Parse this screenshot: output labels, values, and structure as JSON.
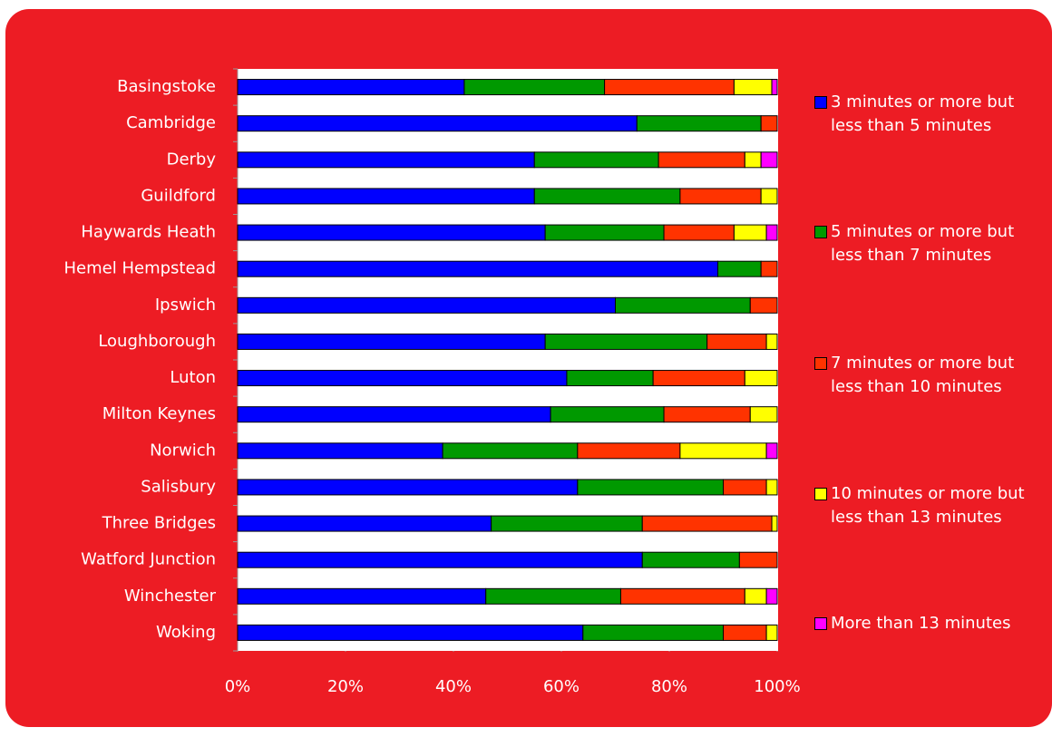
{
  "chart_data": {
    "type": "stacked-bar",
    "categories": [
      "Basingstoke",
      "Cambridge",
      "Derby",
      "Guildford",
      "Haywards Heath",
      "Hemel Hempstead",
      "Ipswich",
      "Loughborough",
      "Luton",
      "Milton Keynes",
      "Norwich",
      "Salisbury",
      "Three Bridges",
      "Watford Junction",
      "Winchester",
      "Woking"
    ],
    "series": [
      {
        "name": "3 minutes or more but less than 5 minutes",
        "color": "#0000ff",
        "values": [
          42,
          74,
          55,
          55,
          57,
          89,
          70,
          57,
          61,
          58,
          38,
          63,
          47,
          75,
          46,
          64
        ]
      },
      {
        "name": "5 minutes or more but less than 7 minutes",
        "color": "#009900",
        "values": [
          26,
          23,
          23,
          27,
          22,
          8,
          25,
          30,
          16,
          21,
          25,
          27,
          28,
          18,
          25,
          26
        ]
      },
      {
        "name": "7 minutes or more but less than 10 minutes",
        "color": "#ff3300",
        "values": [
          24,
          3,
          16,
          15,
          13,
          3,
          5,
          11,
          17,
          16,
          19,
          8,
          24,
          7,
          23,
          8
        ]
      },
      {
        "name": "10 minutes or more but less than 13 minutes",
        "color": "#ffff00",
        "values": [
          7,
          0,
          3,
          3,
          6,
          0,
          0,
          2,
          6,
          5,
          16,
          2,
          1,
          0,
          4,
          2
        ]
      },
      {
        "name": "More than 13 minutes",
        "color": "#ff00ff",
        "values": [
          1,
          0,
          3,
          0,
          2,
          0,
          0,
          0,
          0,
          0,
          2,
          0,
          0,
          0,
          2,
          0
        ]
      }
    ],
    "xlim": [
      0,
      100
    ],
    "xticks": [
      {
        "value": 0,
        "label": "0%"
      },
      {
        "value": 20,
        "label": "20%"
      },
      {
        "value": 40,
        "label": "40%"
      },
      {
        "value": 60,
        "label": "60%"
      },
      {
        "value": 80,
        "label": "80%"
      },
      {
        "value": 100,
        "label": "100%"
      }
    ]
  }
}
